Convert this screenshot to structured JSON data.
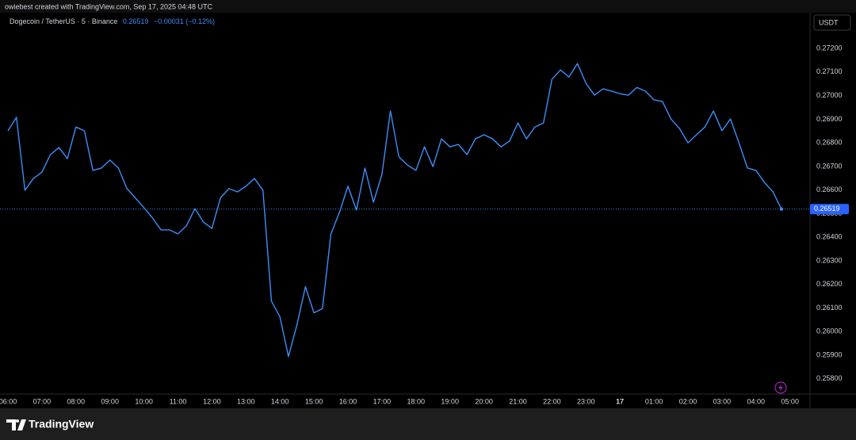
{
  "credit": "owiebest created with TradingView.com, Sep 17, 2025 04:48 UTC",
  "brand": "TradingView",
  "chart_data": {
    "type": "line",
    "title": "Dogecoin / TetherUS · 5 · Binance",
    "change": "−0.00031 (−0.12%)",
    "currency": "USDT",
    "color": "#3d8ef7",
    "x": [
      0,
      0.25,
      0.5,
      0.75,
      1,
      1.25,
      1.5,
      1.75,
      2,
      2.25,
      2.5,
      2.75,
      3,
      3.25,
      3.5,
      3.75,
      4,
      4.25,
      4.5,
      4.75,
      5,
      5.25,
      5.5,
      5.75,
      6,
      6.25,
      6.5,
      6.75,
      7,
      7.25,
      7.5,
      7.75,
      8,
      8.25,
      8.5,
      8.75,
      9,
      9.25,
      9.5,
      9.75,
      10,
      10.25,
      10.5,
      10.75,
      11,
      11.25,
      11.5,
      11.75,
      12,
      12.25,
      12.5,
      12.75,
      13,
      13.25,
      13.5,
      13.75,
      14,
      14.25,
      14.5,
      14.75,
      15,
      15.25,
      15.5,
      15.75,
      16,
      16.25,
      16.5,
      16.75,
      17,
      17.25,
      17.5,
      17.75,
      18,
      18.25,
      18.5,
      18.75,
      19,
      19.25,
      19.5,
      19.75,
      20,
      20.25,
      20.5,
      20.75,
      21,
      21.25,
      21.5,
      21.75,
      22,
      22.25,
      22.5,
      22.75
    ],
    "values": [
      0.26851,
      0.26908,
      0.26599,
      0.26649,
      0.26676,
      0.2675,
      0.2678,
      0.26733,
      0.26867,
      0.26851,
      0.26683,
      0.26693,
      0.26727,
      0.26693,
      0.26606,
      0.26566,
      0.26525,
      0.26482,
      0.26431,
      0.26431,
      0.26414,
      0.26448,
      0.26521,
      0.26464,
      0.26437,
      0.26566,
      0.26606,
      0.26592,
      0.26616,
      0.26649,
      0.26599,
      0.26129,
      0.26062,
      0.25894,
      0.26028,
      0.2619,
      0.26079,
      0.26097,
      0.26414,
      0.26505,
      0.26616,
      0.26515,
      0.26693,
      0.26548,
      0.26666,
      0.26935,
      0.2674,
      0.26706,
      0.26683,
      0.26783,
      0.26699,
      0.26817,
      0.26783,
      0.26793,
      0.2675,
      0.26817,
      0.26834,
      0.26817,
      0.26783,
      0.26807,
      0.26884,
      0.26817,
      0.26867,
      0.26884,
      0.27069,
      0.27109,
      0.27079,
      0.27136,
      0.27052,
      0.27002,
      0.27029,
      0.27019,
      0.27008,
      0.27002,
      0.27035,
      0.27019,
      0.26982,
      0.26975,
      0.26901,
      0.26861,
      0.268,
      0.26834,
      0.26867,
      0.26935,
      0.26851,
      0.26901,
      0.268,
      0.26693,
      0.26683,
      0.26632,
      0.26592,
      0.26519
    ],
    "xlim": [
      -0.233,
      23.59
    ],
    "xticks": [
      {
        "value": 0,
        "label": "06:00"
      },
      {
        "value": 1,
        "label": "07:00"
      },
      {
        "value": 2,
        "label": "08:00"
      },
      {
        "value": 3,
        "label": "09:00"
      },
      {
        "value": 4,
        "label": "10:00"
      },
      {
        "value": 5,
        "label": "11:00"
      },
      {
        "value": 6,
        "label": "12:00"
      },
      {
        "value": 7,
        "label": "13:00"
      },
      {
        "value": 8,
        "label": "14:00"
      },
      {
        "value": 9,
        "label": "15:00"
      },
      {
        "value": 10,
        "label": "16:00"
      },
      {
        "value": 11,
        "label": "17:00"
      },
      {
        "value": 12,
        "label": "18:00"
      },
      {
        "value": 13,
        "label": "19:00"
      },
      {
        "value": 14,
        "label": "20:00"
      },
      {
        "value": 15,
        "label": "21:00"
      },
      {
        "value": 16,
        "label": "22:00"
      },
      {
        "value": 17,
        "label": "23:00"
      },
      {
        "value": 18,
        "label": "17"
      },
      {
        "value": 19,
        "label": "01:00"
      },
      {
        "value": 20,
        "label": "02:00"
      },
      {
        "value": 21,
        "label": "03:00"
      },
      {
        "value": 22,
        "label": "04:00"
      },
      {
        "value": 23,
        "label": "05:00"
      }
    ],
    "ylim": [
      0.25735,
      0.27355
    ],
    "yticks": [
      {
        "value": 0.272,
        "label": "0.27200"
      },
      {
        "value": 0.271,
        "label": "0.27100"
      },
      {
        "value": 0.27,
        "label": "0.27000"
      },
      {
        "value": 0.269,
        "label": "0.26900"
      },
      {
        "value": 0.268,
        "label": "0.26800"
      },
      {
        "value": 0.267,
        "label": "0.26700"
      },
      {
        "value": 0.266,
        "label": "0.26600"
      },
      {
        "value": 0.265,
        "label": "0.26500"
      },
      {
        "value": 0.264,
        "label": "0.26400"
      },
      {
        "value": 0.263,
        "label": "0.26300"
      },
      {
        "value": 0.262,
        "label": "0.26200"
      },
      {
        "value": 0.261,
        "label": "0.26100"
      },
      {
        "value": 0.26,
        "label": "0.26000"
      },
      {
        "value": 0.259,
        "label": "0.25900"
      },
      {
        "value": 0.258,
        "label": "0.25800"
      }
    ]
  }
}
